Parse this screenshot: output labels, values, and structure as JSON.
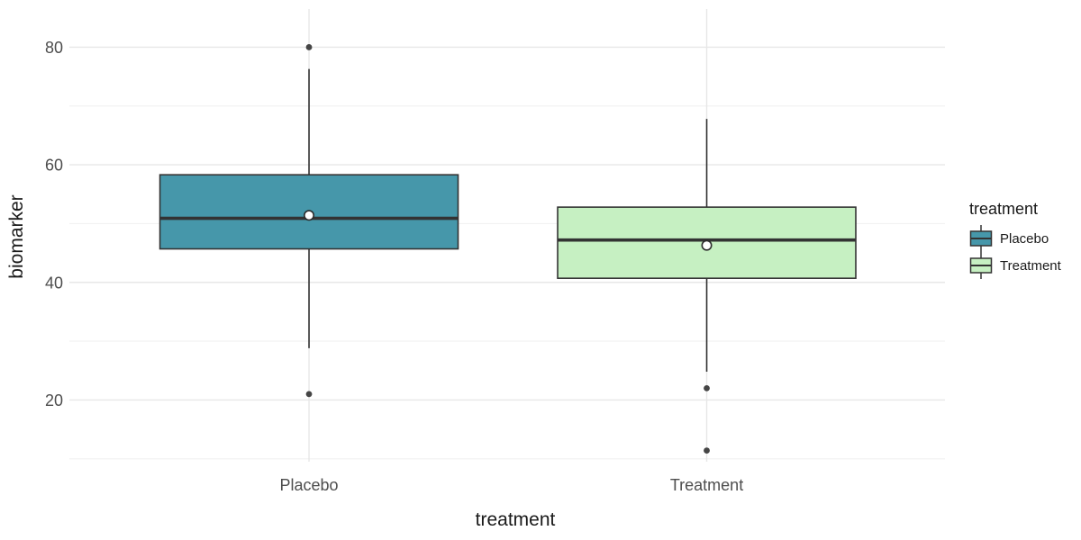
{
  "figure": {
    "background": "#ffffff"
  },
  "chart_data": {
    "type": "boxplot",
    "title": "",
    "xlabel": "treatment",
    "ylabel": "biomarker",
    "categories": [
      "Placebo",
      "Treatment"
    ],
    "y_axis": {
      "major_ticks": [
        20,
        40,
        60,
        80
      ],
      "minor_ticks": [
        10,
        30,
        50,
        70
      ],
      "range": [
        9.5,
        86.5
      ],
      "grid": true
    },
    "series": [
      {
        "name": "Placebo",
        "fill": "#4697aa",
        "lower_whisker": 28.8,
        "q1": 45.7,
        "median": 50.9,
        "q3": 58.3,
        "upper_whisker": 76.3,
        "mean": 51.4,
        "outliers": [
          80,
          21
        ]
      },
      {
        "name": "Treatment",
        "fill": "#c6f0c2",
        "lower_whisker": 24.8,
        "q1": 40.7,
        "median": 47.2,
        "q3": 52.8,
        "upper_whisker": 67.8,
        "mean": 46.3,
        "outliers": [
          22,
          11.4
        ]
      }
    ],
    "legend": {
      "title": "treatment",
      "entries": [
        "Placebo",
        "Treatment"
      ],
      "position": "right"
    },
    "style": {
      "box_border": "#333333",
      "median_color": "#333333",
      "whisker_color": "#333333",
      "outlier_color": "#454545",
      "mean_fill": "#ffffff",
      "mean_stroke": "#2b2b2b",
      "grid_major": "#e7e7e7",
      "grid_minor": "#f2f2f2",
      "tick_label_color": "#4d4d4d",
      "axis_title_color": "#1a1a1a"
    }
  }
}
